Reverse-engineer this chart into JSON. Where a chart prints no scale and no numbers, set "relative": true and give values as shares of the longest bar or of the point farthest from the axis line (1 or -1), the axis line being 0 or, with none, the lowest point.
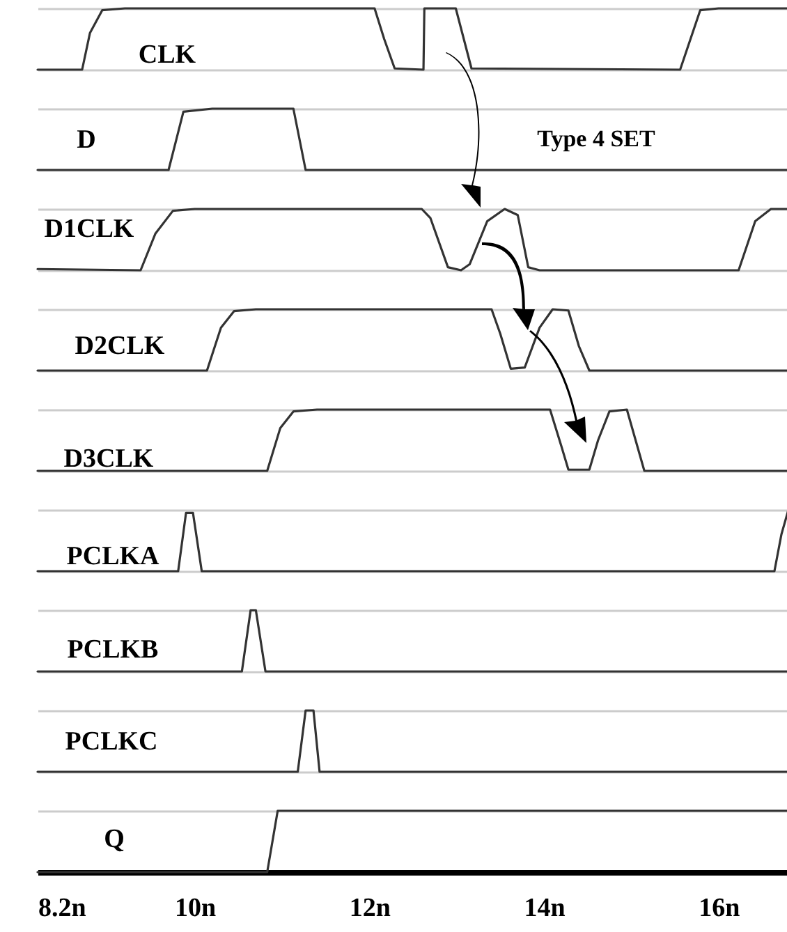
{
  "chart_data": [
    {
      "type": "line",
      "relative": true,
      "xlim": [
        8.2,
        16.8
      ],
      "tick_labels": false,
      "x": [
        8.2,
        8.71,
        8.8,
        8.94,
        9.2,
        12.06,
        12.17,
        12.29,
        12.62,
        12.63,
        12.99,
        13.17,
        15.56,
        15.79,
        16.0,
        16.8
      ],
      "series": [
        {
          "name": "CLK",
          "color": "#333333",
          "values": [
            0,
            0,
            0.6,
            0.97,
            1,
            1,
            0.5,
            0.02,
            0,
            1,
            1,
            0.02,
            0,
            0.97,
            1,
            1
          ]
        }
      ]
    },
    {
      "type": "line",
      "relative": true,
      "xlim": [
        8.2,
        16.8
      ],
      "tick_labels": false,
      "x": [
        8.2,
        9.7,
        9.87,
        10.2,
        11.13,
        11.27,
        16.8
      ],
      "series": [
        {
          "name": "D",
          "color": "#333333",
          "values": [
            0,
            0,
            0.95,
            1,
            1,
            0,
            0
          ]
        }
      ],
      "annotations": [
        "Type 4 SET"
      ]
    },
    {
      "type": "line",
      "relative": true,
      "xlim": [
        8.2,
        16.8
      ],
      "tick_labels": false,
      "x": [
        8.2,
        9.38,
        9.55,
        9.75,
        10.0,
        12.6,
        12.7,
        12.9,
        13.05,
        13.15,
        13.35,
        13.55,
        13.7,
        13.82,
        13.95,
        16.23,
        16.42,
        16.6,
        16.8
      ],
      "series": [
        {
          "name": "D1CLK",
          "color": "#333333",
          "values": [
            0.02,
            0,
            0.6,
            0.97,
            1,
            1,
            0.85,
            0.05,
            0,
            0.1,
            0.8,
            1,
            0.9,
            0.05,
            0,
            0,
            0.8,
            1,
            1
          ]
        }
      ]
    },
    {
      "type": "line",
      "relative": true,
      "xlim": [
        8.2,
        16.8
      ],
      "tick_labels": false,
      "x": [
        8.2,
        10.14,
        10.3,
        10.45,
        10.7,
        13.4,
        13.5,
        13.62,
        13.78,
        13.95,
        14.1,
        14.28,
        14.4,
        14.52,
        16.8
      ],
      "series": [
        {
          "name": "D2CLK",
          "color": "#333333",
          "values": [
            0,
            0,
            0.7,
            0.97,
            1,
            1,
            0.6,
            0.03,
            0.05,
            0.7,
            1,
            0.98,
            0.4,
            0,
            0
          ]
        }
      ]
    },
    {
      "type": "line",
      "relative": true,
      "xlim": [
        8.2,
        16.8
      ],
      "tick_labels": false,
      "x": [
        8.2,
        10.83,
        10.98,
        11.13,
        11.4,
        14.07,
        14.2,
        14.28,
        14.52,
        14.62,
        14.75,
        14.95,
        15.05,
        15.15,
        16.8
      ],
      "series": [
        {
          "name": "D3CLK",
          "color": "#333333",
          "values": [
            0,
            0,
            0.7,
            0.97,
            1,
            1,
            0.4,
            0.02,
            0.02,
            0.5,
            0.97,
            1,
            0.5,
            0,
            0
          ]
        }
      ]
    },
    {
      "type": "line",
      "relative": true,
      "xlim": [
        8.2,
        16.8
      ],
      "tick_labels": false,
      "x": [
        8.2,
        9.81,
        9.9,
        9.98,
        10.08,
        16.64,
        16.72,
        16.8
      ],
      "series": [
        {
          "name": "PCLKA",
          "color": "#333333",
          "values": [
            0,
            0,
            0.95,
            0.95,
            0,
            0,
            0.6,
            1
          ]
        }
      ]
    },
    {
      "type": "line",
      "relative": true,
      "xlim": [
        8.2,
        16.8
      ],
      "tick_labels": false,
      "x": [
        8.2,
        10.54,
        10.64,
        10.7,
        10.81,
        16.8
      ],
      "series": [
        {
          "name": "PCLKB",
          "color": "#333333",
          "values": [
            0,
            0,
            1,
            1,
            0,
            0
          ]
        }
      ]
    },
    {
      "type": "line",
      "relative": true,
      "xlim": [
        8.2,
        16.8
      ],
      "tick_labels": false,
      "x": [
        8.2,
        11.18,
        11.27,
        11.36,
        11.43,
        16.8
      ],
      "series": [
        {
          "name": "PCLKC",
          "color": "#333333",
          "values": [
            0,
            0,
            1,
            1,
            0,
            0
          ]
        }
      ]
    },
    {
      "type": "line",
      "relative": true,
      "xlim": [
        8.2,
        16.8
      ],
      "xticks": [
        {
          "value": 8.2,
          "label": "8.2n"
        },
        {
          "value": 10,
          "label": "10n"
        },
        {
          "value": 12,
          "label": "12n"
        },
        {
          "value": 14,
          "label": "14n"
        },
        {
          "value": 16,
          "label": "16n"
        }
      ],
      "tick_labels": "x",
      "x": [
        8.2,
        10.83,
        10.95,
        16.8
      ],
      "series": [
        {
          "name": "Q",
          "color": "#333333",
          "values": [
            0,
            0,
            1,
            1
          ]
        }
      ]
    }
  ]
}
